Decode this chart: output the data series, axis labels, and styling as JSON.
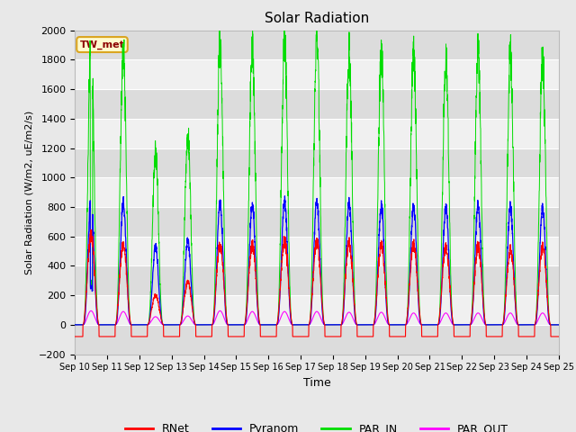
{
  "title": "Solar Radiation",
  "ylabel": "Solar Radiation (W/m2, uE/m2/s)",
  "xlabel": "Time",
  "ylim": [
    -200,
    2000
  ],
  "x_tick_labels": [
    "Sep 10",
    "Sep 11",
    "Sep 12",
    "Sep 13",
    "Sep 14",
    "Sep 15",
    "Sep 16",
    "Sep 17",
    "Sep 18",
    "Sep 19",
    "Sep 20",
    "Sep 21",
    "Sep 22",
    "Sep 23",
    "Sep 24",
    "Sep 25"
  ],
  "station_label": "TW_met",
  "station_label_color": "#8B0000",
  "station_box_facecolor": "#FFFACD",
  "station_box_edgecolor": "#DAA520",
  "line_colors": {
    "RNet": "#FF0000",
    "Pyranom": "#0000FF",
    "PAR_IN": "#00DD00",
    "PAR_OUT": "#FF00FF"
  },
  "legend_labels": [
    "RNet",
    "Pyranom",
    "PAR_IN",
    "PAR_OUT"
  ],
  "background_color": "#E8E8E8",
  "plot_bg_color": "#F5F5F5",
  "grid_color": "#FFFFFF",
  "band_color1": "#DCDCDC",
  "band_color2": "#F0F0F0"
}
